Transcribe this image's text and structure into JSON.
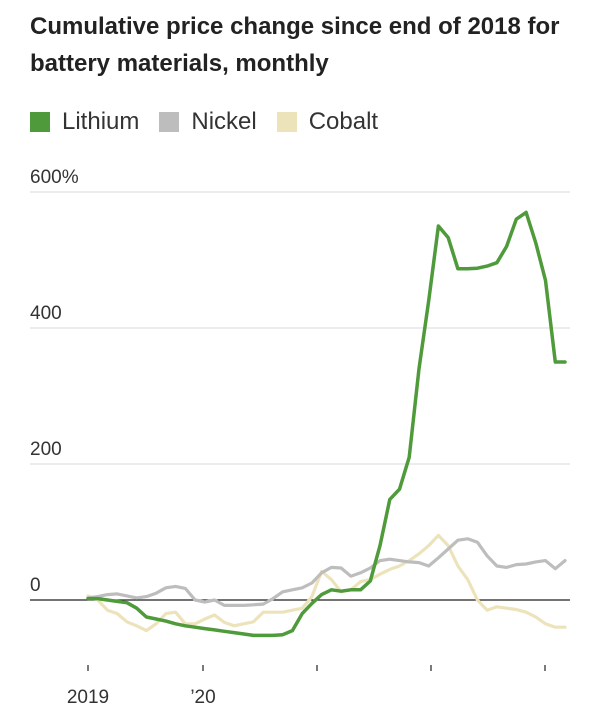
{
  "title": "Cumulative price change since end of 2018 for battery materials, monthly",
  "legend": [
    {
      "name": "Lithium",
      "color": "#4f9a3b"
    },
    {
      "name": "Nickel",
      "color": "#bdbdbd"
    },
    {
      "name": "Cobalt",
      "color": "#ede3bb"
    }
  ],
  "chart_data": {
    "type": "line",
    "title": "Cumulative price change since end of 2018 for battery materials, monthly",
    "xlabel": "",
    "ylabel": "",
    "x_ticks": [
      "2019",
      "’20",
      "",
      "",
      "",
      ""
    ],
    "y_ticks": [
      "600%",
      "400",
      "200",
      "0"
    ],
    "ylim": [
      -100,
      600
    ],
    "grid": true,
    "legend_position": "top-left",
    "x": [
      "2018-12",
      "2019-01",
      "2019-02",
      "2019-03",
      "2019-04",
      "2019-05",
      "2019-06",
      "2019-07",
      "2019-08",
      "2019-09",
      "2019-10",
      "2019-11",
      "2019-12",
      "2020-01",
      "2020-02",
      "2020-03",
      "2020-04",
      "2020-05",
      "2020-06",
      "2020-07",
      "2020-08",
      "2020-09",
      "2020-10",
      "2020-11",
      "2020-12",
      "2021-01",
      "2021-02",
      "2021-03",
      "2021-04",
      "2021-05",
      "2021-06",
      "2021-07",
      "2021-08",
      "2021-09",
      "2021-10",
      "2021-11",
      "2021-12",
      "2022-01",
      "2022-02",
      "2022-03",
      "2022-04",
      "2022-05",
      "2022-06",
      "2022-07",
      "2022-08",
      "2022-09",
      "2022-10",
      "2022-11",
      "2022-12",
      "2023-01"
    ],
    "series": [
      {
        "name": "Lithium",
        "color": "#4f9a3b",
        "values": [
          2,
          2,
          0,
          -2,
          -4,
          -12,
          -25,
          -28,
          -31,
          -35,
          -38,
          -40,
          -42,
          -44,
          -46,
          -48,
          -50,
          -52,
          -52,
          -52,
          -51,
          -45,
          -20,
          -5,
          8,
          15,
          13,
          15,
          15,
          28,
          80,
          148,
          163,
          210,
          340,
          440,
          550,
          533,
          487,
          487,
          488,
          491,
          496,
          520,
          560,
          570,
          525,
          470,
          350,
          350
        ]
      },
      {
        "name": "Nickel",
        "color": "#bdbdbd",
        "values": [
          3,
          5,
          8,
          9,
          6,
          3,
          5,
          10,
          18,
          20,
          17,
          0,
          -3,
          0,
          -8,
          -8,
          -8,
          -7,
          -6,
          2,
          12,
          15,
          18,
          25,
          40,
          48,
          47,
          35,
          40,
          47,
          58,
          60,
          58,
          56,
          55,
          50,
          62,
          75,
          88,
          90,
          85,
          65,
          50,
          48,
          52,
          53,
          56,
          58,
          46,
          58
        ]
      },
      {
        "name": "Cobalt",
        "color": "#ede3bb",
        "values": [
          6,
          0,
          -15,
          -20,
          -32,
          -38,
          -45,
          -35,
          -20,
          -18,
          -35,
          -35,
          -28,
          -22,
          -33,
          -38,
          -35,
          -32,
          -18,
          -18,
          -18,
          -15,
          -12,
          5,
          42,
          30,
          12,
          15,
          27,
          30,
          38,
          45,
          50,
          58,
          68,
          80,
          95,
          80,
          50,
          30,
          0,
          -15,
          -10,
          -12,
          -14,
          -18,
          -25,
          -35,
          -40,
          -40
        ]
      }
    ]
  }
}
